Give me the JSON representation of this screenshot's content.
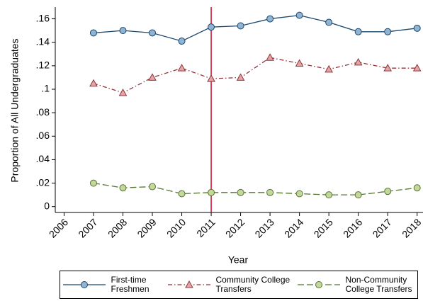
{
  "chart_data": {
    "type": "line",
    "x_label": "Year",
    "y_label": "Proportion of All Undergraduates",
    "x": [
      2007,
      2008,
      2009,
      2010,
      2011,
      2012,
      2013,
      2014,
      2015,
      2016,
      2017,
      2018
    ],
    "series": [
      {
        "name": "First-time Freshmen",
        "color": "#1a476f",
        "marker_color": "#90b4d2",
        "marker": "circle",
        "line_style": "solid",
        "values": [
          0.148,
          0.15,
          0.148,
          0.141,
          0.153,
          0.154,
          0.16,
          0.163,
          0.157,
          0.149,
          0.149,
          0.152
        ]
      },
      {
        "name": "Community College Transfers",
        "color": "#90353b",
        "marker_color": "#e3a5a5",
        "marker": "triangle",
        "line_style": "dash-dot",
        "values": [
          0.105,
          0.097,
          0.11,
          0.118,
          0.109,
          0.11,
          0.127,
          0.122,
          0.117,
          0.123,
          0.118,
          0.118
        ]
      },
      {
        "name": "Non-Community College Transfers",
        "color": "#55752f",
        "marker_color": "#c3d89a",
        "marker": "circle",
        "line_style": "long-dash",
        "values": [
          0.02,
          0.016,
          0.017,
          0.011,
          0.012,
          0.012,
          0.012,
          0.011,
          0.01,
          0.01,
          0.013,
          0.016
        ]
      }
    ],
    "reference_line_x": 2011,
    "reference_line_color": "#c8102e",
    "xlim": [
      2005.7,
      2018.2
    ],
    "xticks": [
      2006,
      2007,
      2008,
      2009,
      2010,
      2011,
      2012,
      2013,
      2014,
      2015,
      2016,
      2017,
      2018
    ],
    "ylim": [
      -0.005,
      0.17
    ],
    "yticks": [
      0,
      {
        "value": 0.02,
        "label": ".02"
      },
      {
        "value": 0.04,
        "label": ".04"
      },
      {
        "value": 0.06,
        "label": ".06"
      },
      {
        "value": 0.08,
        "label": ".08"
      },
      {
        "value": 0.1,
        "label": ".1"
      },
      {
        "value": 0.12,
        "label": ".12"
      },
      {
        "value": 0.14,
        "label": ".14"
      },
      {
        "value": 0.16,
        "label": ".16"
      }
    ],
    "legend": "bottom"
  }
}
